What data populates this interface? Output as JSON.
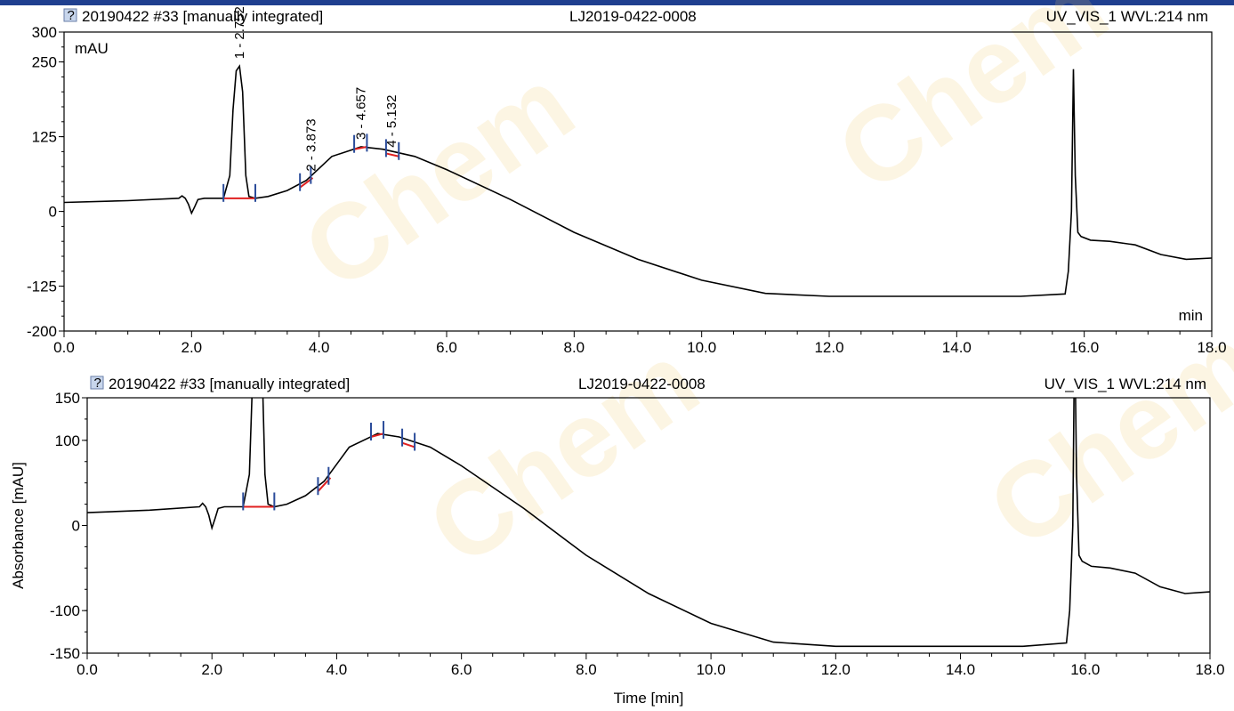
{
  "chart_data": [
    {
      "type": "line",
      "header": {
        "sample": "20190422 #33 [manually integrated]",
        "batch": "LJ2019-0422-0008",
        "channel": "UV_VIS_1 WVL:214 nm"
      },
      "ylabel": "mAU",
      "xlabel": "min",
      "xlim": [
        0,
        18
      ],
      "ylim": [
        -200,
        300
      ],
      "x_ticks": [
        "0.0",
        "2.0",
        "4.0",
        "6.0",
        "8.0",
        "10.0",
        "12.0",
        "14.0",
        "16.0",
        "18.0"
      ],
      "y_ticks": [
        "300",
        "250",
        "125",
        "0",
        "-125",
        "-200"
      ],
      "peaks": [
        {
          "label": "1 - 2.752",
          "rt": 2.752,
          "height": 243
        },
        {
          "label": "2 - 3.873",
          "rt": 3.873,
          "height": 55
        },
        {
          "label": "3 - 4.657",
          "rt": 4.657,
          "height": 108
        },
        {
          "label": "4 - 5.132",
          "rt": 5.132,
          "height": 95
        }
      ],
      "series": [
        {
          "x": [
            0.0,
            1.0,
            1.8,
            1.85,
            1.9,
            1.95,
            2.0,
            2.05,
            2.1,
            2.2,
            2.5,
            2.6,
            2.65,
            2.7,
            2.752,
            2.8,
            2.85,
            2.9,
            3.0,
            3.2,
            3.5,
            3.8,
            4.2,
            4.657,
            5.0,
            5.5,
            6.0,
            7.0,
            8.0,
            9.0,
            10.0,
            11.0,
            12.0,
            13.0,
            14.0,
            15.0,
            15.7,
            15.75,
            15.8,
            15.83,
            15.86,
            15.9,
            15.95,
            16.1,
            16.4,
            16.8,
            17.2,
            17.6,
            18.0
          ],
          "y": [
            15,
            18,
            22,
            26,
            22,
            12,
            -3,
            8,
            20,
            22,
            22,
            60,
            170,
            235,
            243,
            200,
            60,
            25,
            22,
            25,
            35,
            52,
            92,
            108,
            104,
            92,
            70,
            20,
            -35,
            -80,
            -115,
            -137,
            -142,
            -142,
            -142,
            -142,
            -138,
            -100,
            0,
            238,
            60,
            -35,
            -42,
            -48,
            -50,
            -56,
            -72,
            -80,
            -78
          ]
        }
      ]
    },
    {
      "type": "line",
      "header": {
        "sample": "20190422 #33 [manually integrated]",
        "batch": "LJ2019-0422-0008",
        "channel": "UV_VIS_1 WVL:214 nm"
      },
      "ylabel": "Absorbance [mAU]",
      "xlabel": "Time [min]",
      "xlim": [
        0,
        18
      ],
      "ylim": [
        -150,
        150
      ],
      "x_ticks": [
        "0.0",
        "2.0",
        "4.0",
        "6.0",
        "8.0",
        "10.0",
        "12.0",
        "14.0",
        "16.0",
        "18.0"
      ],
      "y_ticks": [
        "150",
        "100",
        "0",
        "-100",
        "-150"
      ],
      "series": [
        {
          "x": [
            0.0,
            1.0,
            1.8,
            1.85,
            1.9,
            1.95,
            2.0,
            2.05,
            2.1,
            2.2,
            2.5,
            2.6,
            2.65,
            2.7,
            2.752,
            2.8,
            2.85,
            2.9,
            3.0,
            3.2,
            3.5,
            3.8,
            4.2,
            4.657,
            5.0,
            5.5,
            6.0,
            7.0,
            8.0,
            9.0,
            10.0,
            11.0,
            12.0,
            13.0,
            14.0,
            15.0,
            15.7,
            15.75,
            15.8,
            15.83,
            15.86,
            15.9,
            15.95,
            16.1,
            16.4,
            16.8,
            17.2,
            17.6,
            18.0
          ],
          "y": [
            15,
            18,
            22,
            26,
            22,
            12,
            -3,
            8,
            20,
            22,
            22,
            60,
            170,
            235,
            243,
            200,
            60,
            25,
            22,
            25,
            35,
            52,
            92,
            108,
            104,
            92,
            70,
            20,
            -35,
            -80,
            -115,
            -137,
            -142,
            -142,
            -142,
            -142,
            -138,
            -100,
            0,
            238,
            60,
            -35,
            -42,
            -48,
            -50,
            -56,
            -72,
            -80,
            -78
          ]
        }
      ]
    }
  ],
  "colors": {
    "trace": "#000000",
    "baseline": "#e02020",
    "marker": "#2b4c9a",
    "watermark": "#f3c969"
  },
  "watermark": "Chem"
}
